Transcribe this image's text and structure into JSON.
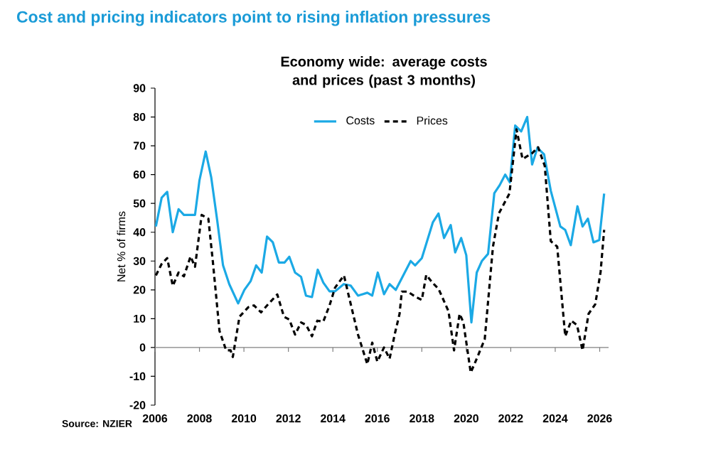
{
  "chart_data": {
    "type": "line",
    "title": "Cost and pricing indicators point to rising inflation pressures",
    "subtitle": "Economy wide: average costs and prices (past 3 months)",
    "ylabel": "Net % of firms",
    "annotations": [
      "Source: NZIER"
    ],
    "xlim": [
      2006,
      2026.4
    ],
    "xticks": [
      2006,
      2008,
      2010,
      2012,
      2014,
      2016,
      2018,
      2020,
      2022,
      2024,
      2026
    ],
    "ylim": [
      -20,
      90
    ],
    "yticks": [
      -20,
      -10,
      0,
      10,
      20,
      30,
      40,
      50,
      60,
      70,
      80,
      90
    ],
    "ref_lines": [
      {
        "axis": "y",
        "value": 0,
        "color": "#808080"
      }
    ],
    "legend": "top",
    "grid": false,
    "series": [
      {
        "name": "Costs",
        "color": "#1ba9e5",
        "line_style": "solid",
        "x": [
          2006.04,
          2006.3,
          2006.55,
          2006.8,
          2007.06,
          2007.3,
          2007.8,
          2008.0,
          2008.28,
          2008.53,
          2008.8,
          2009.06,
          2009.34,
          2009.74,
          2010.02,
          2010.3,
          2010.55,
          2010.8,
          2011.04,
          2011.3,
          2011.57,
          2011.83,
          2012.04,
          2012.3,
          2012.57,
          2012.79,
          2013.06,
          2013.32,
          2013.57,
          2013.85,
          2014.1,
          2014.49,
          2014.8,
          2015.13,
          2015.55,
          2015.77,
          2016.02,
          2016.3,
          2016.55,
          2016.83,
          2017.5,
          2017.7,
          2018.0,
          2018.2,
          2018.5,
          2018.75,
          2019.0,
          2019.3,
          2019.5,
          2019.77,
          2020.0,
          2020.23,
          2020.47,
          2020.7,
          2020.98,
          2021.26,
          2021.5,
          2021.75,
          2021.96,
          2022.2,
          2022.47,
          2022.74,
          2022.96,
          2023.2,
          2023.5,
          2023.8,
          2024.23,
          2024.45,
          2024.7,
          2025.0,
          2025.23,
          2025.47,
          2025.72,
          2025.98,
          2026.2
        ],
        "values": [
          42,
          52,
          54,
          40,
          48,
          46,
          46,
          58,
          68,
          59,
          44,
          28.5,
          22,
          15.3,
          20,
          23,
          28.5,
          26,
          38.5,
          36.5,
          29.5,
          29.5,
          31.5,
          26,
          24.5,
          18,
          17.5,
          27,
          22.5,
          19.5,
          19.5,
          22,
          21.5,
          18,
          19,
          18,
          26,
          18.5,
          22,
          20,
          30,
          28.5,
          31,
          36,
          43.5,
          46.5,
          38,
          42.5,
          33,
          38,
          32,
          8.7,
          26,
          30,
          32.5,
          53.5,
          56.3,
          60,
          57.3,
          77,
          75,
          80,
          63.5,
          69.3,
          67,
          54.4,
          42,
          40.8,
          35.5,
          49,
          42,
          44.7,
          36.5,
          37.3,
          53.4
        ]
      },
      {
        "name": "Prices",
        "color": "#000000",
        "line_style": "dashed",
        "x": [
          2006.04,
          2006.3,
          2006.55,
          2006.8,
          2007.06,
          2007.3,
          2007.6,
          2007.8,
          2008.1,
          2008.4,
          2008.6,
          2008.9,
          2009.2,
          2009.4,
          2009.5,
          2009.8,
          2010.2,
          2010.45,
          2010.77,
          2011.04,
          2011.5,
          2011.8,
          2012.04,
          2012.3,
          2012.57,
          2012.8,
          2013.06,
          2013.3,
          2013.57,
          2013.85,
          2014.1,
          2014.5,
          2014.7,
          2015.13,
          2015.55,
          2015.77,
          2016.0,
          2016.3,
          2016.55,
          2016.8,
          2017.0,
          2017.1,
          2017.36,
          2017.74,
          2018.0,
          2018.2,
          2018.5,
          2018.75,
          2019.2,
          2019.45,
          2019.7,
          2019.87,
          2020.2,
          2020.47,
          2020.83,
          2021.2,
          2021.47,
          2021.94,
          2022.26,
          2022.53,
          2022.96,
          2023.23,
          2023.53,
          2023.8,
          2024.09,
          2024.45,
          2024.72,
          2024.98,
          2025.23,
          2025.5,
          2025.8,
          2026.04,
          2026.2
        ],
        "values": [
          25,
          29,
          31,
          21.4,
          26,
          24.7,
          31.6,
          28,
          46,
          44.7,
          30,
          5.8,
          -1,
          -1,
          -3.3,
          10.7,
          14,
          14.6,
          12.2,
          14.6,
          18.4,
          10.7,
          9.7,
          4.5,
          8.7,
          7.8,
          3.9,
          9.3,
          9,
          14.6,
          20.8,
          25,
          18.4,
          4.5,
          -5.8,
          1.7,
          -4.9,
          0,
          -3.9,
          5.2,
          11.7,
          19.4,
          19.4,
          17.5,
          16.5,
          25.2,
          22.3,
          20.4,
          12.6,
          -1,
          11.7,
          8.7,
          -8.7,
          -3.9,
          2.9,
          35,
          46.6,
          53.4,
          75.7,
          65.4,
          67.4,
          69.5,
          63,
          36.9,
          35,
          3.9,
          9.3,
          7.8,
          -1,
          11.7,
          15,
          26.2,
          40.8
        ]
      }
    ]
  }
}
